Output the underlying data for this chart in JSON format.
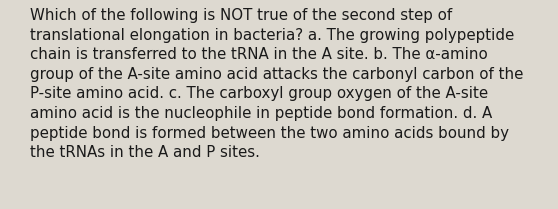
{
  "background_color": "#ddd9d0",
  "text_color": "#1a1a1a",
  "lines": [
    "Which of the following is NOT true of the second step of",
    "translational elongation in bacteria? a. The growing polypeptide",
    "chain is transferred to the tRNA in the A site. b. The α-amino",
    "group of the A-site amino acid attacks the carbonyl carbon of the",
    "P-site amino acid. c. The carboxyl group oxygen of the A-site",
    "amino acid is the nucleophile in peptide bond formation. d. A",
    "peptide bond is formed between the two amino acids bound by",
    "the tRNAs in the A and P sites."
  ],
  "font_size": 10.8,
  "fig_width": 5.58,
  "fig_height": 2.09,
  "dpi": 100
}
